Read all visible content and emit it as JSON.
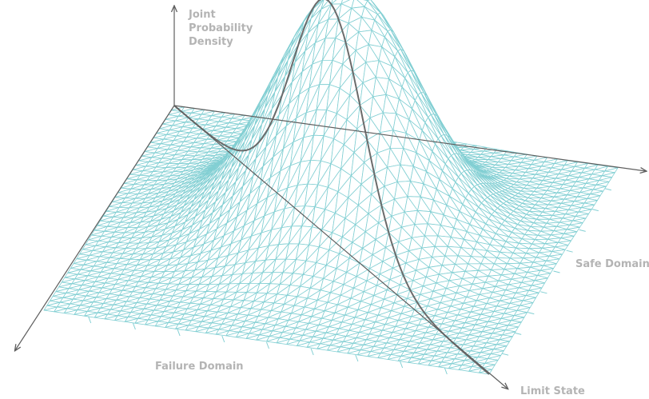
{
  "diagram": {
    "axis_label_lines": [
      "Joint",
      "Probability",
      "Density"
    ],
    "regions": {
      "safe": "Safe Domain",
      "failure": "Failure Domain"
    },
    "limit_state": "Limit State"
  },
  "colors": {
    "mesh": "#82cfd3",
    "axis": "#5f5f5f",
    "limit_curve": "#6b6b6b",
    "label": "#b4b4b4",
    "background": "#ffffff"
  }
}
